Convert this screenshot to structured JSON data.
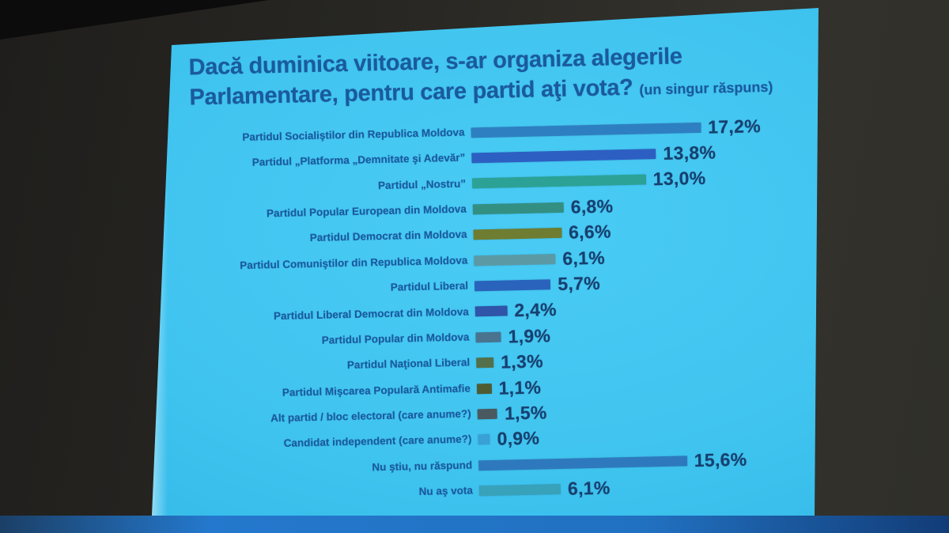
{
  "slide": {
    "title_line1": "Dacă duminica viitoare, s-ar organiza alegerile",
    "title_line2": "Parlamentare, pentru care partid aţi vota?",
    "title_note": "(un singur răspuns)"
  },
  "colors": {
    "slide_background": "#41c5f0",
    "text_blue": "#1a5a9e",
    "value_text_navy": "#17406f",
    "bottom_band_blue": "#2171c1",
    "wall_dark": "#2b2a26"
  },
  "chart_data": {
    "type": "bar",
    "orientation": "horizontal",
    "title": "Dacă duminica viitoare, s-ar organiza alegerile Parlamentare, pentru care partid aţi vota? (un singur răspuns)",
    "xlabel": "",
    "ylabel": "",
    "xlim": [
      0,
      18
    ],
    "grid": false,
    "legend": "none",
    "value_suffix": "%",
    "decimal_separator": ",",
    "categories": [
      "Partidul Socialiştilor din Republica Moldova",
      "Partidul „Platforma „Demnitate şi Adevăr”",
      "Partidul „Nostru”",
      "Partidul Popular European din Moldova",
      "Partidul Democrat din Moldova",
      "Partidul Comuniştilor din Republica Moldova",
      "Partidul Liberal",
      "Partidul Liberal Democrat din Moldova",
      "Partidul Popular din Moldova",
      "Partidul Naţional Liberal",
      "Partidul Mişcarea Populară Antimafie",
      "Alt partid / bloc electoral (care anume?)",
      "Candidat independent (care anume?)",
      "Nu ştiu, nu răspund",
      "Nu aş vota"
    ],
    "values": [
      17.2,
      13.8,
      13.0,
      6.8,
      6.6,
      6.1,
      5.7,
      2.4,
      1.9,
      1.3,
      1.1,
      1.5,
      0.9,
      15.6,
      6.1
    ],
    "value_labels": [
      "17,2%",
      "13,8%",
      "13,0%",
      "6,8%",
      "6,6%",
      "6,1%",
      "5,7%",
      "2,4%",
      "1,9%",
      "1,3%",
      "1,1%",
      "1,5%",
      "0,9%",
      "15,6%",
      "6,1%"
    ],
    "bar_colors": [
      "#2e7fc1",
      "#2d5fc3",
      "#2ba295",
      "#338f82",
      "#6e7d31",
      "#5b9aa4",
      "#2a63bb",
      "#2f54a8",
      "#49738f",
      "#53704a",
      "#4f5c33",
      "#49595f",
      "#3aa0d8",
      "#2e79bd",
      "#38a2ba"
    ]
  }
}
